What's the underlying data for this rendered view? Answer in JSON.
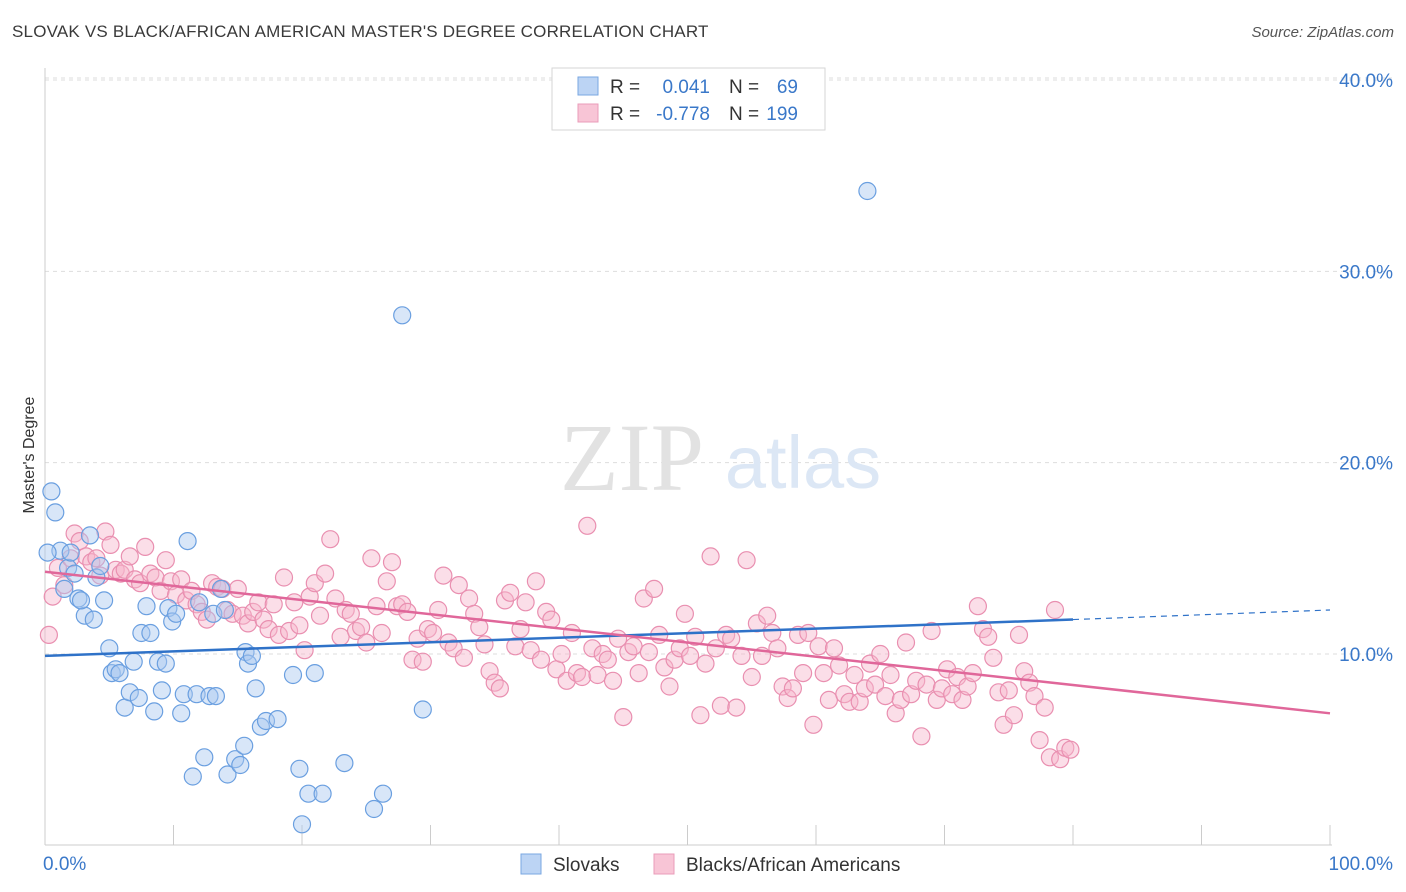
{
  "header": {
    "title": "SLOVAK VS BLACK/AFRICAN AMERICAN MASTER'S DEGREE CORRELATION CHART",
    "source": "Source: ZipAtlas.com"
  },
  "watermark": {
    "zip": "ZIP",
    "atlas": "atlas"
  },
  "colors": {
    "blue_fill": "#a9c8f0",
    "blue_stroke": "#6a9fe0",
    "blue_line": "#2f72c8",
    "pink_fill": "#f6b6cb",
    "pink_stroke": "#e98fb0",
    "pink_line": "#e0679a",
    "axis_text": "#3a78c9",
    "grid": "#dddddd"
  },
  "legend": {
    "rows": [
      {
        "r_label": "R =",
        "r_value": "0.041",
        "n_label": "N =",
        "n_value": "69"
      },
      {
        "r_label": "R =",
        "r_value": "-0.778",
        "n_label": "N =",
        "n_value": "199"
      }
    ]
  },
  "bottom_legend": [
    "Slovaks",
    "Blacks/African Americans"
  ],
  "chart_data": {
    "type": "scatter",
    "title": "SLOVAK VS BLACK/AFRICAN AMERICAN MASTER'S DEGREE CORRELATION CHART",
    "xlabel": "",
    "ylabel": "Master's Degree",
    "xlim": [
      0,
      100
    ],
    "ylim": [
      0,
      41
    ],
    "x_tick_labels": [
      "0.0%",
      "100.0%"
    ],
    "y_ticks": [
      10,
      20,
      30,
      40
    ],
    "y_tick_labels": [
      "10.0%",
      "20.0%",
      "30.0%",
      "40.0%"
    ],
    "grid": true,
    "series": [
      {
        "name": "Slovaks",
        "R": 0.041,
        "N": 69,
        "trend": {
          "x0": 0,
          "y0": 9.9,
          "x1": 80,
          "y1": 11.8,
          "dash_to_x": 100,
          "dash_to_y": 12.3
        },
        "points": [
          [
            0.5,
            18.5
          ],
          [
            0.8,
            17.4
          ],
          [
            1.2,
            15.4
          ],
          [
            1.8,
            14.5
          ],
          [
            2.0,
            15.3
          ],
          [
            2.3,
            14.2
          ],
          [
            2.6,
            12.9
          ],
          [
            3.1,
            12.0
          ],
          [
            3.5,
            16.2
          ],
          [
            3.8,
            11.8
          ],
          [
            2.8,
            12.8
          ],
          [
            4.0,
            14.0
          ],
          [
            4.3,
            14.6
          ],
          [
            4.6,
            12.8
          ],
          [
            5.0,
            10.3
          ],
          [
            5.2,
            9.0
          ],
          [
            5.5,
            9.2
          ],
          [
            5.8,
            9.0
          ],
          [
            6.2,
            7.2
          ],
          [
            6.6,
            8.0
          ],
          [
            6.9,
            9.6
          ],
          [
            7.3,
            7.7
          ],
          [
            7.5,
            11.1
          ],
          [
            7.9,
            12.5
          ],
          [
            8.2,
            11.1
          ],
          [
            8.5,
            7.0
          ],
          [
            8.8,
            9.6
          ],
          [
            9.1,
            8.1
          ],
          [
            9.4,
            9.5
          ],
          [
            9.6,
            12.4
          ],
          [
            9.9,
            11.7
          ],
          [
            10.2,
            12.1
          ],
          [
            10.6,
            6.9
          ],
          [
            10.8,
            7.9
          ],
          [
            11.1,
            15.9
          ],
          [
            11.5,
            3.6
          ],
          [
            11.8,
            7.9
          ],
          [
            12.0,
            12.7
          ],
          [
            12.4,
            4.6
          ],
          [
            12.8,
            7.8
          ],
          [
            13.1,
            12.1
          ],
          [
            13.3,
            7.8
          ],
          [
            13.7,
            13.4
          ],
          [
            14.0,
            12.3
          ],
          [
            14.2,
            3.7
          ],
          [
            14.8,
            4.5
          ],
          [
            15.2,
            4.2
          ],
          [
            15.5,
            5.2
          ],
          [
            15.6,
            10.1
          ],
          [
            15.8,
            9.5
          ],
          [
            16.1,
            9.9
          ],
          [
            16.4,
            8.2
          ],
          [
            16.8,
            6.2
          ],
          [
            17.2,
            6.5
          ],
          [
            18.1,
            6.6
          ],
          [
            19.3,
            8.9
          ],
          [
            19.8,
            4.0
          ],
          [
            20.0,
            1.1
          ],
          [
            20.5,
            2.7
          ],
          [
            21.0,
            9.0
          ],
          [
            21.6,
            2.7
          ],
          [
            23.3,
            4.3
          ],
          [
            25.6,
            1.9
          ],
          [
            26.3,
            2.7
          ],
          [
            27.8,
            27.7
          ],
          [
            29.4,
            7.1
          ],
          [
            64.0,
            34.2
          ],
          [
            0.2,
            15.3
          ],
          [
            1.5,
            13.4
          ]
        ]
      },
      {
        "name": "Blacks/African Americans",
        "R": -0.778,
        "N": 199,
        "trend": {
          "x0": 0,
          "y0": 14.3,
          "x1": 100,
          "y1": 6.9
        },
        "points": [
          [
            0.3,
            11.0
          ],
          [
            0.6,
            13.0
          ],
          [
            1.0,
            14.5
          ],
          [
            1.5,
            13.6
          ],
          [
            2.0,
            15.0
          ],
          [
            2.3,
            16.3
          ],
          [
            2.7,
            15.9
          ],
          [
            3.2,
            15.1
          ],
          [
            3.6,
            14.8
          ],
          [
            4.0,
            15.0
          ],
          [
            4.3,
            14.1
          ],
          [
            4.7,
            16.4
          ],
          [
            5.1,
            15.7
          ],
          [
            5.5,
            14.4
          ],
          [
            5.9,
            14.2
          ],
          [
            6.2,
            14.4
          ],
          [
            6.6,
            15.1
          ],
          [
            7.0,
            13.9
          ],
          [
            7.4,
            13.7
          ],
          [
            7.8,
            15.6
          ],
          [
            8.2,
            14.2
          ],
          [
            8.6,
            14.0
          ],
          [
            9.0,
            13.3
          ],
          [
            9.4,
            14.9
          ],
          [
            9.8,
            13.8
          ],
          [
            10.2,
            13.1
          ],
          [
            10.6,
            13.9
          ],
          [
            11.0,
            12.8
          ],
          [
            11.4,
            13.3
          ],
          [
            11.8,
            12.6
          ],
          [
            12.2,
            12.2
          ],
          [
            12.6,
            11.8
          ],
          [
            13.0,
            13.7
          ],
          [
            13.4,
            13.5
          ],
          [
            13.8,
            13.4
          ],
          [
            14.2,
            12.3
          ],
          [
            14.6,
            12.1
          ],
          [
            15.0,
            13.4
          ],
          [
            15.4,
            12.0
          ],
          [
            15.8,
            11.6
          ],
          [
            16.2,
            12.2
          ],
          [
            16.6,
            12.7
          ],
          [
            17.0,
            11.8
          ],
          [
            17.4,
            11.3
          ],
          [
            17.8,
            12.6
          ],
          [
            18.2,
            11.0
          ],
          [
            18.6,
            14.0
          ],
          [
            19.0,
            11.2
          ],
          [
            19.4,
            12.7
          ],
          [
            19.8,
            11.5
          ],
          [
            20.2,
            10.2
          ],
          [
            20.6,
            13.0
          ],
          [
            21.0,
            13.7
          ],
          [
            21.4,
            12.0
          ],
          [
            21.8,
            14.2
          ],
          [
            22.2,
            16.0
          ],
          [
            22.6,
            12.9
          ],
          [
            23.0,
            10.9
          ],
          [
            23.4,
            12.3
          ],
          [
            23.8,
            12.1
          ],
          [
            24.2,
            11.2
          ],
          [
            24.6,
            11.4
          ],
          [
            25.0,
            10.6
          ],
          [
            25.4,
            15.0
          ],
          [
            25.8,
            12.5
          ],
          [
            26.2,
            11.1
          ],
          [
            26.6,
            13.8
          ],
          [
            27.0,
            14.8
          ],
          [
            27.4,
            12.5
          ],
          [
            27.8,
            12.6
          ],
          [
            28.2,
            12.2
          ],
          [
            28.6,
            9.7
          ],
          [
            29.0,
            10.8
          ],
          [
            29.4,
            9.6
          ],
          [
            29.8,
            11.3
          ],
          [
            30.2,
            11.1
          ],
          [
            30.6,
            12.3
          ],
          [
            31.0,
            14.1
          ],
          [
            31.4,
            10.6
          ],
          [
            31.8,
            10.3
          ],
          [
            32.2,
            13.6
          ],
          [
            32.6,
            9.8
          ],
          [
            33.0,
            12.9
          ],
          [
            33.4,
            12.1
          ],
          [
            33.8,
            11.4
          ],
          [
            34.2,
            10.5
          ],
          [
            34.6,
            9.1
          ],
          [
            35.0,
            8.5
          ],
          [
            35.4,
            8.2
          ],
          [
            35.8,
            12.8
          ],
          [
            36.2,
            13.2
          ],
          [
            36.6,
            10.4
          ],
          [
            37.0,
            11.3
          ],
          [
            37.4,
            12.7
          ],
          [
            37.8,
            10.2
          ],
          [
            38.2,
            13.8
          ],
          [
            38.6,
            9.7
          ],
          [
            39.0,
            12.2
          ],
          [
            39.4,
            11.8
          ],
          [
            39.8,
            9.2
          ],
          [
            40.2,
            10.0
          ],
          [
            40.6,
            8.6
          ],
          [
            41.0,
            11.1
          ],
          [
            41.4,
            9.0
          ],
          [
            41.8,
            8.8
          ],
          [
            42.2,
            16.7
          ],
          [
            42.6,
            10.3
          ],
          [
            43.0,
            8.9
          ],
          [
            43.4,
            10.0
          ],
          [
            43.8,
            9.7
          ],
          [
            44.2,
            8.6
          ],
          [
            44.6,
            10.8
          ],
          [
            45.0,
            6.7
          ],
          [
            45.4,
            10.1
          ],
          [
            45.8,
            10.4
          ],
          [
            46.2,
            9.0
          ],
          [
            46.6,
            12.9
          ],
          [
            47.0,
            10.1
          ],
          [
            47.4,
            13.4
          ],
          [
            47.8,
            11.0
          ],
          [
            48.2,
            9.3
          ],
          [
            48.6,
            8.3
          ],
          [
            49.0,
            9.7
          ],
          [
            49.4,
            10.3
          ],
          [
            49.8,
            12.1
          ],
          [
            50.2,
            9.9
          ],
          [
            50.6,
            10.9
          ],
          [
            51.0,
            6.8
          ],
          [
            51.4,
            9.5
          ],
          [
            51.8,
            15.1
          ],
          [
            52.2,
            10.3
          ],
          [
            52.6,
            7.3
          ],
          [
            53.0,
            11.0
          ],
          [
            53.4,
            10.8
          ],
          [
            53.8,
            7.2
          ],
          [
            54.2,
            9.9
          ],
          [
            54.6,
            14.9
          ],
          [
            55.0,
            8.8
          ],
          [
            55.4,
            11.6
          ],
          [
            55.8,
            9.9
          ],
          [
            56.2,
            12.0
          ],
          [
            56.6,
            11.1
          ],
          [
            57.0,
            10.3
          ],
          [
            57.4,
            8.3
          ],
          [
            57.8,
            7.7
          ],
          [
            58.2,
            8.2
          ],
          [
            58.6,
            11.0
          ],
          [
            59.0,
            9.0
          ],
          [
            59.4,
            11.1
          ],
          [
            59.8,
            6.3
          ],
          [
            60.2,
            10.4
          ],
          [
            60.6,
            9.0
          ],
          [
            61.0,
            7.6
          ],
          [
            61.4,
            10.3
          ],
          [
            61.8,
            9.4
          ],
          [
            62.2,
            7.9
          ],
          [
            62.6,
            7.5
          ],
          [
            63.0,
            8.9
          ],
          [
            63.4,
            7.5
          ],
          [
            63.8,
            8.2
          ],
          [
            64.2,
            9.5
          ],
          [
            64.6,
            8.4
          ],
          [
            65.0,
            10.0
          ],
          [
            65.4,
            7.8
          ],
          [
            65.8,
            8.9
          ],
          [
            66.2,
            6.9
          ],
          [
            66.6,
            7.6
          ],
          [
            67.0,
            10.6
          ],
          [
            67.4,
            7.9
          ],
          [
            67.8,
            8.6
          ],
          [
            68.2,
            5.7
          ],
          [
            68.6,
            8.4
          ],
          [
            69.0,
            11.2
          ],
          [
            69.4,
            7.6
          ],
          [
            69.8,
            8.2
          ],
          [
            70.2,
            9.2
          ],
          [
            70.6,
            7.9
          ],
          [
            71.0,
            8.8
          ],
          [
            71.4,
            7.6
          ],
          [
            71.8,
            8.3
          ],
          [
            72.2,
            9.0
          ],
          [
            72.6,
            12.5
          ],
          [
            73.0,
            11.3
          ],
          [
            73.4,
            10.9
          ],
          [
            73.8,
            9.8
          ],
          [
            74.2,
            8.0
          ],
          [
            74.6,
            6.3
          ],
          [
            75.0,
            8.1
          ],
          [
            75.4,
            6.8
          ],
          [
            75.8,
            11.0
          ],
          [
            76.2,
            9.1
          ],
          [
            76.6,
            8.5
          ],
          [
            77.0,
            7.8
          ],
          [
            77.4,
            5.5
          ],
          [
            77.8,
            7.2
          ],
          [
            78.2,
            4.6
          ],
          [
            78.6,
            12.3
          ],
          [
            79.0,
            4.5
          ],
          [
            79.4,
            5.1
          ],
          [
            79.8,
            5.0
          ]
        ]
      }
    ]
  }
}
